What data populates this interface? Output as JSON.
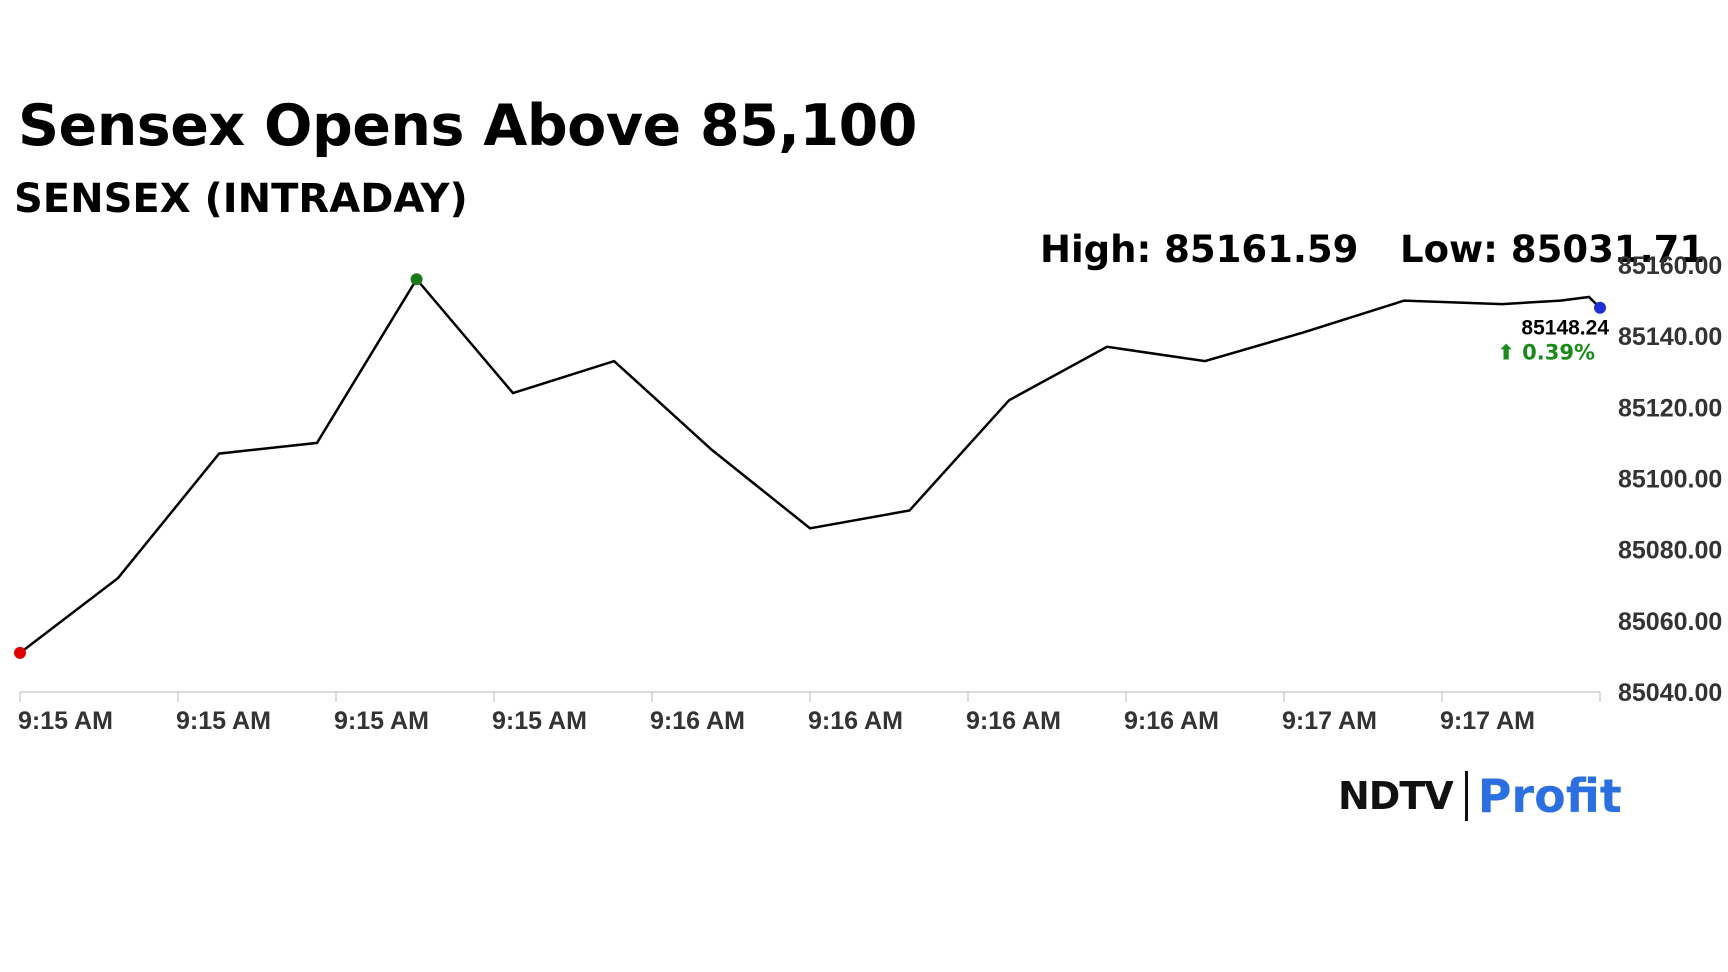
{
  "header": {
    "title": "Sensex Opens Above 85,100",
    "subtitle": "SENSEX (INTRADAY)"
  },
  "stats": {
    "high": "High: 85161.59",
    "low": "Low: 85031.71"
  },
  "last_value": {
    "price": "85148.24",
    "change": "⬆ 0.39%"
  },
  "branding": {
    "ndtv": "NDTV",
    "profit": "Profit"
  },
  "colors": {
    "line": "#000000",
    "start_marker": "#e00000",
    "high_marker": "#1a7a1a",
    "end_marker": "#1f2fd0",
    "change_up": "#1a8a1a",
    "axis": "#bbbbbb",
    "profit_blue": "#2b6fe0",
    "profit_pink": "#e0408a"
  },
  "chart_data": {
    "type": "line",
    "x_tick_labels": [
      "9:15 AM",
      "9:15 AM",
      "9:15 AM",
      "9:15 AM",
      "9:16 AM",
      "9:16 AM",
      "9:16 AM",
      "9:16 AM",
      "9:17 AM",
      "9:17 AM"
    ],
    "y_tick_labels": [
      "85160.00",
      "85140.00",
      "85120.00",
      "85100.00",
      "85080.00",
      "85060.00",
      "85040.00"
    ],
    "y_ticks": [
      85160,
      85140,
      85120,
      85100,
      85080,
      85060,
      85040
    ],
    "ylim": [
      85040,
      85160
    ],
    "x_range": [
      0,
      10
    ],
    "series": [
      {
        "x": [
          0,
          0.62,
          1.26,
          1.88,
          2.51,
          3.12,
          3.76,
          4.38,
          5.0,
          5.63,
          6.26,
          6.88,
          7.5,
          8.12,
          8.76,
          9.38,
          9.75,
          9.93,
          10.0
        ],
        "values": [
          85051,
          85072,
          85107,
          85110,
          85156,
          85124,
          85133,
          85108,
          85086,
          85091,
          85122,
          85137,
          85133,
          85141,
          85150,
          85149,
          85150,
          85151,
          85148
        ]
      }
    ],
    "markers": {
      "start_index": 0,
      "high_index": 4,
      "end_index": 18
    },
    "grid": false
  }
}
